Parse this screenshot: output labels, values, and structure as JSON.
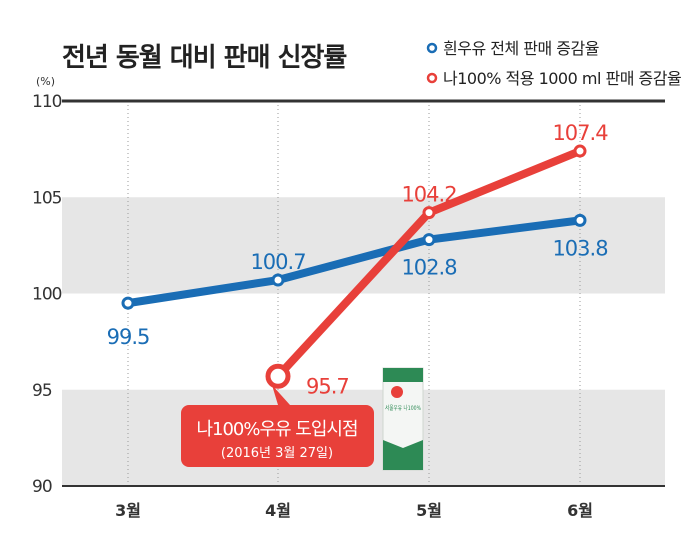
{
  "chart_data": {
    "type": "line",
    "title": "전년 동월 대비 판매 신장률",
    "yunit": "(%)",
    "categories": [
      "3월",
      "4월",
      "5월",
      "6월"
    ],
    "ylim": [
      90,
      110
    ],
    "yticks": [
      90,
      95,
      100,
      105,
      110
    ],
    "grid": "vertical dotted lines, alternating shaded bands",
    "legend_placement": "top-right",
    "series": [
      {
        "name": "흰우유 전체 판매 증감율",
        "color": "#1a6db5",
        "values": [
          99.5,
          100.7,
          102.8,
          103.8
        ],
        "labels": [
          "99.5",
          "100.7",
          "102.8",
          "103.8"
        ]
      },
      {
        "name": "나100% 적용 1000 ml 판매 증감율",
        "color": "#e8403a",
        "values": [
          null,
          95.7,
          104.2,
          107.4
        ],
        "labels": [
          "",
          "95.7",
          "104.2",
          "107.4"
        ]
      }
    ],
    "annotation": {
      "line1": "나100%우유 도입시점",
      "line2": "(2016년 3월 27일)",
      "color": "#e8403a"
    }
  },
  "product_image": {
    "label": "서울우유 나100%"
  }
}
